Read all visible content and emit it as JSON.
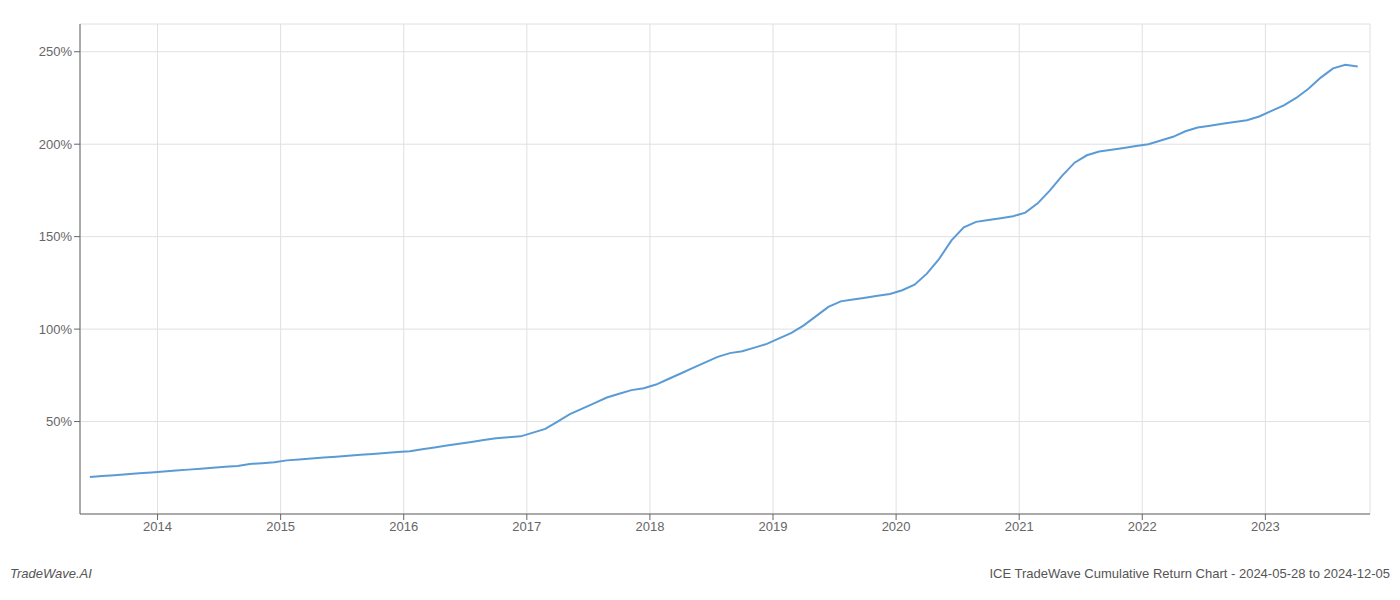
{
  "chart_data": {
    "type": "line",
    "title": "ICE TradeWave Cumulative Return Chart - 2024-05-28 to 2024-12-05",
    "annotations": [
      "TradeWave.AI"
    ],
    "color": "#5b9bd5",
    "grid": true,
    "x": [
      2013.45,
      2013.55,
      2013.65,
      2013.75,
      2013.85,
      2013.95,
      2014.05,
      2014.15,
      2014.25,
      2014.35,
      2014.45,
      2014.55,
      2014.65,
      2014.75,
      2014.85,
      2014.95,
      2015.05,
      2015.15,
      2015.25,
      2015.35,
      2015.45,
      2015.55,
      2015.65,
      2015.75,
      2015.85,
      2015.95,
      2016.05,
      2016.15,
      2016.25,
      2016.35,
      2016.45,
      2016.55,
      2016.65,
      2016.75,
      2016.85,
      2016.95,
      2017.05,
      2017.15,
      2017.25,
      2017.35,
      2017.45,
      2017.55,
      2017.65,
      2017.75,
      2017.85,
      2017.95,
      2018.05,
      2018.15,
      2018.25,
      2018.35,
      2018.45,
      2018.55,
      2018.65,
      2018.75,
      2018.85,
      2018.95,
      2019.05,
      2019.15,
      2019.25,
      2019.35,
      2019.45,
      2019.55,
      2019.65,
      2019.75,
      2019.85,
      2019.95,
      2020.05,
      2020.15,
      2020.25,
      2020.35,
      2020.45,
      2020.55,
      2020.65,
      2020.75,
      2020.85,
      2020.95,
      2021.05,
      2021.15,
      2021.25,
      2021.35,
      2021.45,
      2021.55,
      2021.65,
      2021.75,
      2021.85,
      2021.95,
      2022.05,
      2022.15,
      2022.25,
      2022.35,
      2022.45,
      2022.55,
      2022.65,
      2022.75,
      2022.85,
      2022.95,
      2023.05,
      2023.15,
      2023.25,
      2023.35,
      2023.45,
      2023.55,
      2023.65,
      2023.75
    ],
    "values": [
      20,
      20.5,
      21,
      21.5,
      22,
      22.5,
      23,
      23.5,
      24,
      24.5,
      25,
      25.5,
      26,
      27,
      27.5,
      28,
      29,
      29.5,
      30,
      30.5,
      31,
      31.5,
      32,
      32.5,
      33,
      33.5,
      34,
      35,
      36,
      37,
      38,
      39,
      40,
      41,
      41.5,
      42,
      44,
      46,
      50,
      54,
      57,
      60,
      63,
      65,
      67,
      68,
      70,
      73,
      76,
      79,
      82,
      85,
      87,
      88,
      90,
      92,
      95,
      98,
      102,
      107,
      112,
      115,
      116,
      117,
      118,
      119,
      121,
      124,
      130,
      138,
      148,
      155,
      158,
      159,
      160,
      161,
      163,
      168,
      175,
      183,
      190,
      194,
      196,
      197,
      198,
      199,
      200,
      202,
      204,
      207,
      209,
      210,
      211,
      212,
      213,
      215,
      218,
      221,
      225,
      230,
      236,
      241,
      243,
      242
    ],
    "xlim": [
      2013.37,
      2023.85
    ],
    "ylim": [
      0,
      265
    ],
    "xticks": [
      2014,
      2015,
      2016,
      2017,
      2018,
      2019,
      2020,
      2021,
      2022,
      2023
    ],
    "yticks": [
      {
        "value": 50,
        "label": "50%"
      },
      {
        "value": 100,
        "label": "100%"
      },
      {
        "value": 150,
        "label": "150%"
      },
      {
        "value": 200,
        "label": "200%"
      },
      {
        "value": 250,
        "label": "250%"
      }
    ]
  }
}
